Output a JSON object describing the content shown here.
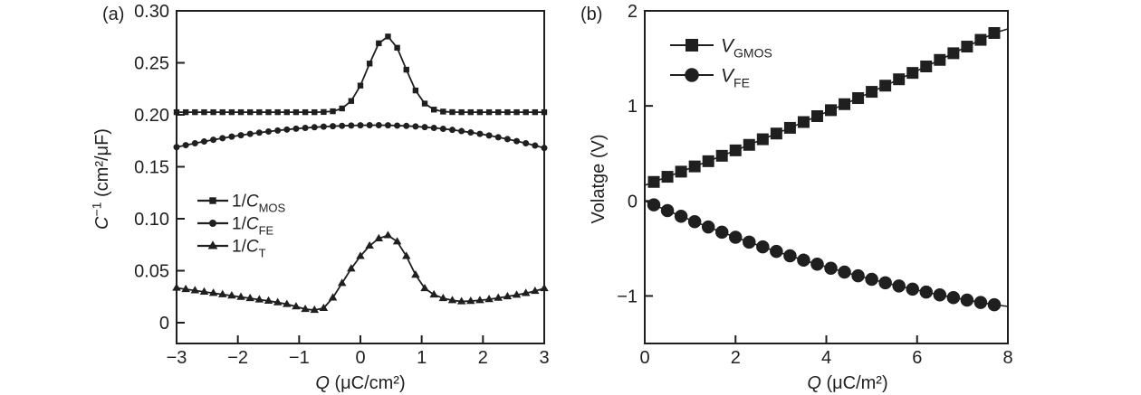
{
  "colors": {
    "ink": "#1f1f1f",
    "background": "#ffffff"
  },
  "chart_data": [
    {
      "type": "line",
      "panel_label": "(a)",
      "xlabel_segments": [
        {
          "t": "Q",
          "it": true
        },
        {
          "t": " (μC/cm²)"
        }
      ],
      "ylabel_segments": [
        {
          "t": "C",
          "it": true
        },
        {
          "t": "−1",
          "sup": true
        },
        {
          "t": " (cm²/μF)"
        }
      ],
      "xlim": [
        -3,
        3
      ],
      "ylim": [
        -0.02,
        0.3
      ],
      "xticks": [
        -3,
        -2,
        -1,
        0,
        1,
        2,
        3
      ],
      "xtick_labels": [
        "−3",
        "−2",
        "−1",
        "0",
        "1",
        "2",
        "3"
      ],
      "yticks": [
        0,
        0.05,
        0.1,
        0.15,
        0.2,
        0.25,
        0.3
      ],
      "ytick_labels": [
        "0",
        "0.05",
        "0.10",
        "0.15",
        "0.20",
        "0.25",
        "0.30"
      ],
      "grid": false,
      "legend_position": "inside-center-left",
      "series": [
        {
          "id": "inv-c-mos",
          "label_segments": [
            {
              "t": "1/"
            },
            {
              "t": "C",
              "it": true
            },
            {
              "t": "MOS",
              "sub": true
            }
          ],
          "marker": "square",
          "marker_size": 6.4,
          "x": [
            -3,
            -2.85,
            -2.7,
            -2.55,
            -2.4,
            -2.25,
            -2.1,
            -1.95,
            -1.8,
            -1.65,
            -1.5,
            -1.35,
            -1.2,
            -1.05,
            -0.9,
            -0.75,
            -0.6,
            -0.45,
            -0.3,
            -0.15,
            0,
            0.15,
            0.3,
            0.45,
            0.6,
            0.75,
            0.9,
            1.05,
            1.2,
            1.35,
            1.5,
            1.65,
            1.8,
            1.95,
            2.1,
            2.25,
            2.4,
            2.55,
            2.7,
            2.85,
            3
          ],
          "y": [
            0.2025,
            0.2025,
            0.2025,
            0.2025,
            0.2025,
            0.2025,
            0.2025,
            0.2025,
            0.2025,
            0.2025,
            0.2025,
            0.2025,
            0.2025,
            0.2025,
            0.2025,
            0.2025,
            0.2027,
            0.2034,
            0.2061,
            0.2133,
            0.2281,
            0.2493,
            0.2688,
            0.2753,
            0.2645,
            0.2434,
            0.2234,
            0.2108,
            0.205,
            0.2031,
            0.2026,
            0.2025,
            0.2025,
            0.2025,
            0.2025,
            0.2025,
            0.2025,
            0.2025,
            0.2025,
            0.2025,
            0.2025
          ]
        },
        {
          "id": "inv-c-fe",
          "label_segments": [
            {
              "t": "1/"
            },
            {
              "t": "C",
              "it": true
            },
            {
              "t": "FE",
              "sub": true
            }
          ],
          "marker": "circle",
          "marker_size": 7,
          "x": [
            -3,
            -2.85,
            -2.7,
            -2.55,
            -2.4,
            -2.25,
            -2.1,
            -1.95,
            -1.8,
            -1.65,
            -1.5,
            -1.35,
            -1.2,
            -1.05,
            -0.9,
            -0.75,
            -0.6,
            -0.45,
            -0.3,
            -0.15,
            0,
            0.15,
            0.3,
            0.45,
            0.6,
            0.75,
            0.9,
            1.05,
            1.2,
            1.35,
            1.5,
            1.65,
            1.8,
            1.95,
            2.1,
            2.25,
            2.4,
            2.55,
            2.7,
            2.85,
            3
          ],
          "y": [
            0.1689,
            0.1708,
            0.1726,
            0.1743,
            0.176,
            0.1775,
            0.179,
            0.1803,
            0.1816,
            0.1828,
            0.1839,
            0.1849,
            0.1858,
            0.1866,
            0.1874,
            0.188,
            0.1886,
            0.189,
            0.1894,
            0.1897,
            0.1899,
            0.19,
            0.19,
            0.1899,
            0.1896,
            0.1893,
            0.1888,
            0.1881,
            0.1874,
            0.1865,
            0.1855,
            0.1843,
            0.183,
            0.1816,
            0.1801,
            0.1784,
            0.1766,
            0.1747,
            0.1726,
            0.1704,
            0.1681
          ]
        },
        {
          "id": "inv-c-t",
          "label_segments": [
            {
              "t": "1/"
            },
            {
              "t": "C",
              "it": true
            },
            {
              "t": "T",
              "sub": true
            }
          ],
          "marker": "triangle",
          "marker_size": 8.2,
          "x": [
            -3,
            -2.85,
            -2.7,
            -2.55,
            -2.4,
            -2.25,
            -2.1,
            -1.95,
            -1.8,
            -1.65,
            -1.5,
            -1.35,
            -1.2,
            -1.05,
            -0.9,
            -0.75,
            -0.6,
            -0.45,
            -0.3,
            -0.15,
            0,
            0.15,
            0.3,
            0.45,
            0.6,
            0.75,
            0.9,
            1.05,
            1.2,
            1.35,
            1.5,
            1.65,
            1.8,
            1.95,
            2.1,
            2.25,
            2.4,
            2.55,
            2.7,
            2.85,
            3
          ],
          "y": [
            0.0335,
            0.0322,
            0.031,
            0.0297,
            0.0285,
            0.0272,
            0.026,
            0.0247,
            0.0235,
            0.0222,
            0.021,
            0.0195,
            0.0178,
            0.0155,
            0.013,
            0.0122,
            0.014,
            0.024,
            0.038,
            0.052,
            0.064,
            0.074,
            0.081,
            0.084,
            0.078,
            0.064,
            0.046,
            0.033,
            0.027,
            0.0235,
            0.0215,
            0.0204,
            0.0208,
            0.0215,
            0.0225,
            0.0238,
            0.0252,
            0.0267,
            0.0284,
            0.0304,
            0.033
          ]
        }
      ]
    },
    {
      "type": "line",
      "panel_label": "(b)",
      "xlabel_segments": [
        {
          "t": "Q",
          "it": true
        },
        {
          "t": " (μC/m²)"
        }
      ],
      "ylabel_segments": [
        {
          "t": "Volatge (V)"
        }
      ],
      "xlim": [
        0,
        8
      ],
      "ylim": [
        -1.5,
        2
      ],
      "xticks": [
        0,
        2,
        4,
        6,
        8
      ],
      "xtick_labels": [
        "0",
        "2",
        "4",
        "6",
        "8"
      ],
      "yticks": [
        -1,
        0,
        1,
        2
      ],
      "ytick_labels": [
        "−1",
        "0",
        "1",
        "2"
      ],
      "grid": false,
      "legend_position": "inside-top-left",
      "series": [
        {
          "id": "v-gmos",
          "label_segments": [
            {
              "t": "V",
              "it": true
            },
            {
              "t": "GMOS",
              "sub": true
            }
          ],
          "marker": "square",
          "marker_size": 13,
          "line_start": [
            0,
            0.165
          ],
          "line_end": [
            8,
            1.81
          ],
          "x": [
            0.2,
            0.5,
            0.8,
            1.1,
            1.4,
            1.7,
            2,
            2.3,
            2.6,
            2.9,
            3.2,
            3.5,
            3.8,
            4.1,
            4.4,
            4.7,
            5,
            5.3,
            5.6,
            5.9,
            6.2,
            6.5,
            6.8,
            7.1,
            7.4,
            7.7
          ],
          "y": [
            0.2,
            0.254,
            0.308,
            0.363,
            0.418,
            0.475,
            0.532,
            0.59,
            0.649,
            0.709,
            0.769,
            0.83,
            0.892,
            0.955,
            1.018,
            1.082,
            1.148,
            1.213,
            1.28,
            1.347,
            1.415,
            1.484,
            1.554,
            1.624,
            1.695,
            1.767
          ]
        },
        {
          "id": "v-fe",
          "label_segments": [
            {
              "t": "V",
              "it": true
            },
            {
              "t": "FE",
              "sub": true
            }
          ],
          "marker": "circle",
          "marker_size": 14.5,
          "line_start": [
            0,
            0
          ],
          "line_end": [
            8,
            -1.11
          ],
          "x": [
            0.2,
            0.5,
            0.8,
            1.1,
            1.4,
            1.7,
            2,
            2.3,
            2.6,
            2.9,
            3.2,
            3.5,
            3.8,
            4.1,
            4.4,
            4.7,
            5,
            5.3,
            5.6,
            5.9,
            6.2,
            6.5,
            6.8,
            7.1,
            7.4,
            7.7
          ],
          "y": [
            -0.041,
            -0.102,
            -0.161,
            -0.218,
            -0.274,
            -0.329,
            -0.382,
            -0.433,
            -0.483,
            -0.531,
            -0.578,
            -0.623,
            -0.666,
            -0.708,
            -0.749,
            -0.788,
            -0.825,
            -0.861,
            -0.895,
            -0.928,
            -0.959,
            -0.989,
            -1.017,
            -1.043,
            -1.068,
            -1.092
          ]
        }
      ]
    }
  ]
}
